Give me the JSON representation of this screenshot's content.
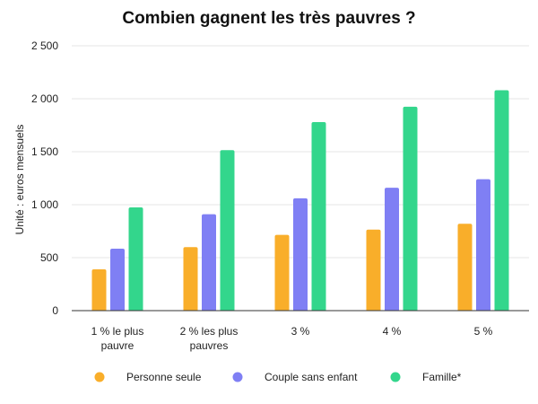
{
  "chart_data": {
    "type": "bar",
    "title": "Combien gagnent les très pauvres ?",
    "xlabel": "",
    "ylabel": "Unité : euros mensuels",
    "ylim": [
      0,
      2500
    ],
    "yticks": [
      0,
      500,
      1000,
      1500,
      2000,
      2500
    ],
    "ytick_labels": [
      "0",
      "500",
      "1 000",
      "1 500",
      "2 000",
      "2 500"
    ],
    "grid": true,
    "legend_position": "bottom",
    "categories": [
      [
        "1 % le plus",
        "pauvre"
      ],
      [
        "2 % les plus",
        "pauvres"
      ],
      [
        "3 %"
      ],
      [
        "4 %"
      ],
      [
        "5 %"
      ]
    ],
    "series": [
      {
        "name": "Personne seule",
        "color": "#f9ae2a",
        "values": [
          390,
          600,
          715,
          765,
          820
        ]
      },
      {
        "name": "Couple sans enfant",
        "color": "#7f7ff4",
        "values": [
          585,
          910,
          1060,
          1160,
          1240
        ]
      },
      {
        "name": "Famille*",
        "color": "#33d68c",
        "values": [
          975,
          1515,
          1780,
          1925,
          2080
        ]
      }
    ]
  }
}
